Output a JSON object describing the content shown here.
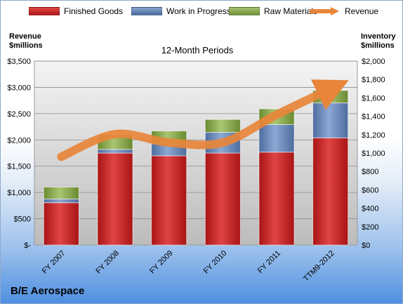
{
  "legend": {
    "finished_goods": "Finished Goods",
    "work_in_progress": "Work in Progress",
    "raw_materials": "Raw Materials",
    "revenue": "Revenue"
  },
  "left_axis_title": [
    "Revenue",
    "$millions"
  ],
  "right_axis_title": [
    "Inventory",
    "$millions"
  ],
  "company": "B/E Aerospace",
  "colors": {
    "finished_goods": "#c41e1e",
    "work_in_progress": "#6585b8",
    "raw_materials": "#86a64a",
    "revenue": "#e8853a",
    "plot_bg_top": "#f2f2f2",
    "plot_bg_bottom": "#bfbfbf"
  },
  "chart_data": {
    "type": "bar",
    "title": "12-Month Periods",
    "categories": [
      "FY 2007",
      "FY 2008",
      "FY 2009",
      "FY 2010",
      "FY 2011",
      "TTM9-2012"
    ],
    "stacked": true,
    "series": [
      {
        "name": "Finished Goods",
        "axis": "right",
        "values": [
          460,
          1000,
          970,
          1000,
          1010,
          1165
        ]
      },
      {
        "name": "Work in Progress",
        "axis": "right",
        "values": [
          40,
          40,
          130,
          225,
          300,
          380
        ]
      },
      {
        "name": "Raw Materials",
        "axis": "right",
        "values": [
          130,
          160,
          140,
          140,
          170,
          135
        ]
      },
      {
        "name": "Revenue",
        "axis": "left",
        "type": "line",
        "values": [
          1680,
          2110,
          1950,
          1950,
          2480,
          2970
        ]
      }
    ],
    "y_left": {
      "label": "Revenue $millions",
      "ylim": [
        0,
        3500
      ],
      "ticks": [
        "$-",
        "$500",
        "$1,000",
        "$1,500",
        "$2,000",
        "$2,500",
        "$3,000",
        "$3,500"
      ]
    },
    "y_right": {
      "label": "Inventory $millions",
      "ylim": [
        0,
        2000
      ],
      "ticks": [
        "$0",
        "$200",
        "$400",
        "$600",
        "$800",
        "$1,000",
        "$1,200",
        "$1,400",
        "$1,600",
        "$1,800",
        "$2,000"
      ]
    },
    "grid": true
  }
}
